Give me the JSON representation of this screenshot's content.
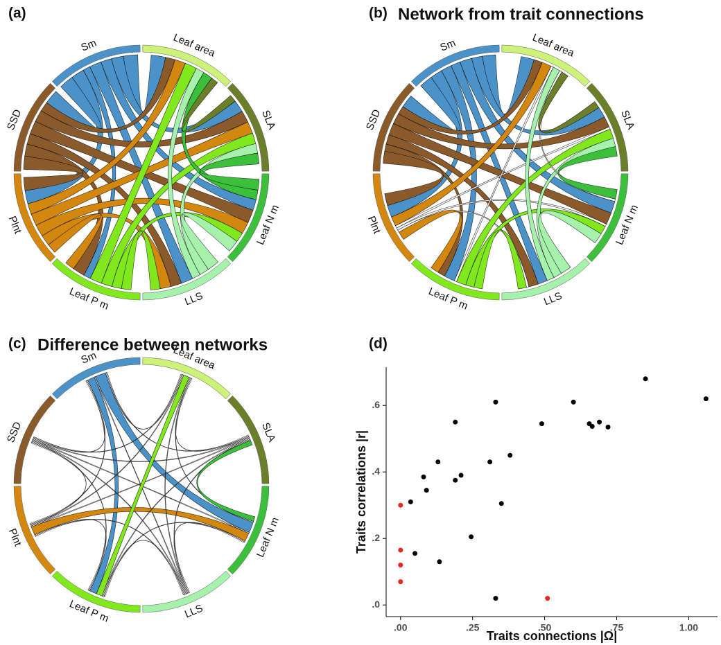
{
  "chart_data": [
    {
      "type": "chord",
      "label": "(a)",
      "sectors": [
        {
          "name": "Leaf area",
          "color": "#cdf27a"
        },
        {
          "name": "SLA",
          "color": "#6b7f2a"
        },
        {
          "name": "Leaf N m",
          "color": "#3cc03c"
        },
        {
          "name": "LLS",
          "color": "#a6f2ad"
        },
        {
          "name": "Leaf P m",
          "color": "#80e81c"
        },
        {
          "name": "Plnt",
          "color": "#d4870e"
        },
        {
          "name": "SSD",
          "color": "#8b5a2b"
        },
        {
          "name": "Sm",
          "color": "#4a92c8"
        }
      ],
      "links": [
        {
          "from": "Sm",
          "to": "Leaf area",
          "value": 0.6
        },
        {
          "from": "Sm",
          "to": "SLA",
          "value": 0.5
        },
        {
          "from": "Sm",
          "to": "Leaf N m",
          "value": 0.45
        },
        {
          "from": "Sm",
          "to": "LLS",
          "value": 0.5
        },
        {
          "from": "Sm",
          "to": "Leaf P m",
          "value": 0.3
        },
        {
          "from": "Sm",
          "to": "Plnt",
          "value": 0.55
        },
        {
          "from": "Sm",
          "to": "SSD",
          "value": 0.6
        },
        {
          "from": "SSD",
          "to": "Leaf area",
          "value": 0.4
        },
        {
          "from": "SSD",
          "to": "SLA",
          "value": 0.5
        },
        {
          "from": "SSD",
          "to": "Leaf N m",
          "value": 0.55
        },
        {
          "from": "SSD",
          "to": "LLS",
          "value": 0.45
        },
        {
          "from": "SSD",
          "to": "Leaf P m",
          "value": 0.5
        },
        {
          "from": "SSD",
          "to": "Plnt",
          "value": 0.55
        },
        {
          "from": "Plnt",
          "to": "Leaf area",
          "value": 0.45
        },
        {
          "from": "Plnt",
          "to": "SLA",
          "value": 0.5
        },
        {
          "from": "Plnt",
          "to": "Leaf N m",
          "value": 0.5
        },
        {
          "from": "Plnt",
          "to": "LLS",
          "value": 0.45
        },
        {
          "from": "Plnt",
          "to": "Leaf P m",
          "value": 0.4
        },
        {
          "from": "Leaf P m",
          "to": "Leaf area",
          "value": 0.5
        },
        {
          "from": "Leaf P m",
          "to": "SLA",
          "value": 0.45
        },
        {
          "from": "Leaf P m",
          "to": "Leaf N m",
          "value": 0.4
        },
        {
          "from": "Leaf P m",
          "to": "LLS",
          "value": 0.4
        },
        {
          "from": "LLS",
          "to": "Leaf area",
          "value": 0.35
        },
        {
          "from": "LLS",
          "to": "SLA",
          "value": 0.4
        },
        {
          "from": "LLS",
          "to": "Leaf N m",
          "value": 0.5
        },
        {
          "from": "Leaf N m",
          "to": "Leaf area",
          "value": 0.4
        },
        {
          "from": "Leaf N m",
          "to": "SLA",
          "value": 0.45
        },
        {
          "from": "SLA",
          "to": "Leaf area",
          "value": 0.3
        }
      ]
    },
    {
      "type": "chord",
      "label": "(b)",
      "title": "Network from trait connections",
      "sectors": [
        {
          "name": "Leaf area",
          "color": "#cdf27a"
        },
        {
          "name": "SLA",
          "color": "#6b7f2a"
        },
        {
          "name": "Leaf N m",
          "color": "#3cc03c"
        },
        {
          "name": "LLS",
          "color": "#a6f2ad"
        },
        {
          "name": "Leaf P m",
          "color": "#80e81c"
        },
        {
          "name": "Plnt",
          "color": "#d4870e"
        },
        {
          "name": "SSD",
          "color": "#8b5a2b"
        },
        {
          "name": "Sm",
          "color": "#4a92c8"
        }
      ],
      "links": [
        {
          "from": "Sm",
          "to": "Leaf area",
          "value": 0.55
        },
        {
          "from": "Sm",
          "to": "SLA",
          "value": 0.45
        },
        {
          "from": "Sm",
          "to": "Leaf N m",
          "value": 0.5
        },
        {
          "from": "Sm",
          "to": "LLS",
          "value": 0.4
        },
        {
          "from": "Sm",
          "to": "Leaf P m",
          "value": 0.45
        },
        {
          "from": "Sm",
          "to": "Plnt",
          "value": 0.5
        },
        {
          "from": "Sm",
          "to": "SSD",
          "value": 0.55
        },
        {
          "from": "SSD",
          "to": "Leaf area",
          "value": 0.35
        },
        {
          "from": "SSD",
          "to": "SLA",
          "value": 0.45
        },
        {
          "from": "SSD",
          "to": "Leaf N m",
          "value": 0.5
        },
        {
          "from": "SSD",
          "to": "LLS",
          "value": 0.4
        },
        {
          "from": "SSD",
          "to": "Leaf P m",
          "value": 0.3
        },
        {
          "from": "SSD",
          "to": "Plnt",
          "value": 0.5
        },
        {
          "from": "Plnt",
          "to": "Leaf area",
          "value": 0.4
        },
        {
          "from": "Plnt",
          "to": "SLA",
          "value": 0.1,
          "color": "#ffffff"
        },
        {
          "from": "Plnt",
          "to": "Leaf N m",
          "value": 0.1,
          "color": "#ffffff"
        },
        {
          "from": "Plnt",
          "to": "LLS",
          "value": 0.1,
          "color": "#ffffff"
        },
        {
          "from": "Plnt",
          "to": "Leaf P m",
          "value": 0.35
        },
        {
          "from": "Leaf P m",
          "to": "Leaf area",
          "value": 0.1,
          "color": "#ffffff"
        },
        {
          "from": "Leaf P m",
          "to": "SLA",
          "value": 0.4
        },
        {
          "from": "Leaf P m",
          "to": "Leaf N m",
          "value": 0.35
        },
        {
          "from": "Leaf P m",
          "to": "LLS",
          "value": 0.35
        },
        {
          "from": "LLS",
          "to": "Leaf area",
          "value": 0.3
        },
        {
          "from": "LLS",
          "to": "SLA",
          "value": 0.35
        },
        {
          "from": "LLS",
          "to": "Leaf N m",
          "value": 0.45
        },
        {
          "from": "Leaf N m",
          "to": "Leaf area",
          "value": 0.1,
          "color": "#ffffff"
        },
        {
          "from": "Leaf N m",
          "to": "SLA",
          "value": 0.4
        },
        {
          "from": "SLA",
          "to": "Leaf area",
          "value": 0.3
        }
      ]
    },
    {
      "type": "chord",
      "label": "(c)",
      "title": "Difference between networks",
      "sectors": [
        {
          "name": "Leaf area",
          "color": "#cdf27a"
        },
        {
          "name": "SLA",
          "color": "#6b7f2a"
        },
        {
          "name": "Leaf N m",
          "color": "#3cc03c"
        },
        {
          "name": "LLS",
          "color": "#a6f2ad"
        },
        {
          "name": "Leaf P m",
          "color": "#80e81c"
        },
        {
          "name": "Plnt",
          "color": "#d4870e"
        },
        {
          "name": "SSD",
          "color": "#8b5a2b"
        },
        {
          "name": "Sm",
          "color": "#4a92c8"
        }
      ],
      "links": [
        {
          "from": "Sm",
          "to": "Leaf area",
          "value": 0.04,
          "color": "#ffffff"
        },
        {
          "from": "Sm",
          "to": "SLA",
          "value": 0.04,
          "color": "#ffffff"
        },
        {
          "from": "Sm",
          "to": "Leaf N m",
          "value": 0.45
        },
        {
          "from": "Sm",
          "to": "LLS",
          "value": 0.04,
          "color": "#ffffff"
        },
        {
          "from": "Sm",
          "to": "Leaf P m",
          "value": 0.3
        },
        {
          "from": "Sm",
          "to": "Plnt",
          "value": 0.04,
          "color": "#ffffff"
        },
        {
          "from": "Sm",
          "to": "SSD",
          "value": 0.04,
          "color": "#ffffff"
        },
        {
          "from": "SSD",
          "to": "Leaf area",
          "value": 0.04,
          "color": "#ffffff"
        },
        {
          "from": "SSD",
          "to": "SLA",
          "value": 0.04,
          "color": "#ffffff"
        },
        {
          "from": "SSD",
          "to": "Leaf N m",
          "value": 0.04,
          "color": "#ffffff"
        },
        {
          "from": "SSD",
          "to": "LLS",
          "value": 0.04,
          "color": "#ffffff"
        },
        {
          "from": "SSD",
          "to": "Leaf P m",
          "value": 0.04,
          "color": "#ffffff"
        },
        {
          "from": "SSD",
          "to": "Plnt",
          "value": 0.04,
          "color": "#ffffff"
        },
        {
          "from": "Plnt",
          "to": "Leaf area",
          "value": 0.04,
          "color": "#ffffff"
        },
        {
          "from": "Plnt",
          "to": "SLA",
          "value": 0.04,
          "color": "#ffffff"
        },
        {
          "from": "Plnt",
          "to": "Leaf N m",
          "value": 0.35
        },
        {
          "from": "Plnt",
          "to": "LLS",
          "value": 0.04,
          "color": "#ffffff"
        },
        {
          "from": "Plnt",
          "to": "Leaf P m",
          "value": 0.04,
          "color": "#ffffff"
        },
        {
          "from": "Leaf P m",
          "to": "Leaf area",
          "value": 0.25
        },
        {
          "from": "Leaf P m",
          "to": "SLA",
          "value": 0.04,
          "color": "#ffffff"
        },
        {
          "from": "Leaf P m",
          "to": "Leaf N m",
          "value": 0.04,
          "color": "#ffffff"
        },
        {
          "from": "Leaf P m",
          "to": "LLS",
          "value": 0.04,
          "color": "#ffffff"
        },
        {
          "from": "LLS",
          "to": "Leaf area",
          "value": 0.04,
          "color": "#ffffff"
        },
        {
          "from": "LLS",
          "to": "SLA",
          "value": 0.04,
          "color": "#ffffff"
        },
        {
          "from": "LLS",
          "to": "Leaf N m",
          "value": 0.04,
          "color": "#ffffff"
        },
        {
          "from": "Leaf N m",
          "to": "Leaf area",
          "value": 0.04,
          "color": "#ffffff"
        },
        {
          "from": "Leaf N m",
          "to": "SLA",
          "value": 0.2
        },
        {
          "from": "SLA",
          "to": "Leaf area",
          "value": 0.04,
          "color": "#ffffff"
        }
      ]
    },
    {
      "type": "scatter",
      "label": "(d)",
      "x_label": "Traits connections |Ω|",
      "y_label": "Traits correlations |r|",
      "xlim": [
        -0.05,
        1.1
      ],
      "ylim": [
        -0.035,
        0.715
      ],
      "xticks": [
        {
          "value": 0,
          "label": ".00"
        },
        {
          "value": 0.25,
          "label": ".25"
        },
        {
          "value": 0.5,
          "label": ".50"
        },
        {
          "value": 0.75,
          "label": ".75"
        },
        {
          "value": 1,
          "label": "1.00"
        }
      ],
      "yticks": [
        {
          "value": 0,
          "label": ".0"
        },
        {
          "value": 0.2,
          "label": ".2"
        },
        {
          "value": 0.4,
          "label": ".4"
        },
        {
          "value": 0.6,
          "label": ".6"
        }
      ],
      "series": [
        {
          "color": "#000000",
          "x": [
            0.33,
            0.85,
            1.06,
            0.6,
            0.19,
            0.49,
            0.655,
            0.665,
            0.69,
            0.72,
            0.13,
            0.38,
            0.31,
            0.08,
            0.21,
            0.19,
            0.09,
            0.035,
            0.35,
            0.245,
            0.05,
            0.135,
            0.33
          ],
          "y": [
            0.61,
            0.68,
            0.62,
            0.61,
            0.55,
            0.545,
            0.545,
            0.537,
            0.55,
            0.535,
            0.43,
            0.45,
            0.43,
            0.385,
            0.39,
            0.375,
            0.345,
            0.31,
            0.305,
            0.205,
            0.155,
            0.13,
            0.02
          ]
        },
        {
          "color": "#e8281e",
          "x": [
            0,
            0,
            0,
            0,
            0.51
          ],
          "y": [
            0.3,
            0.165,
            0.12,
            0.07,
            0.02
          ]
        }
      ]
    }
  ]
}
